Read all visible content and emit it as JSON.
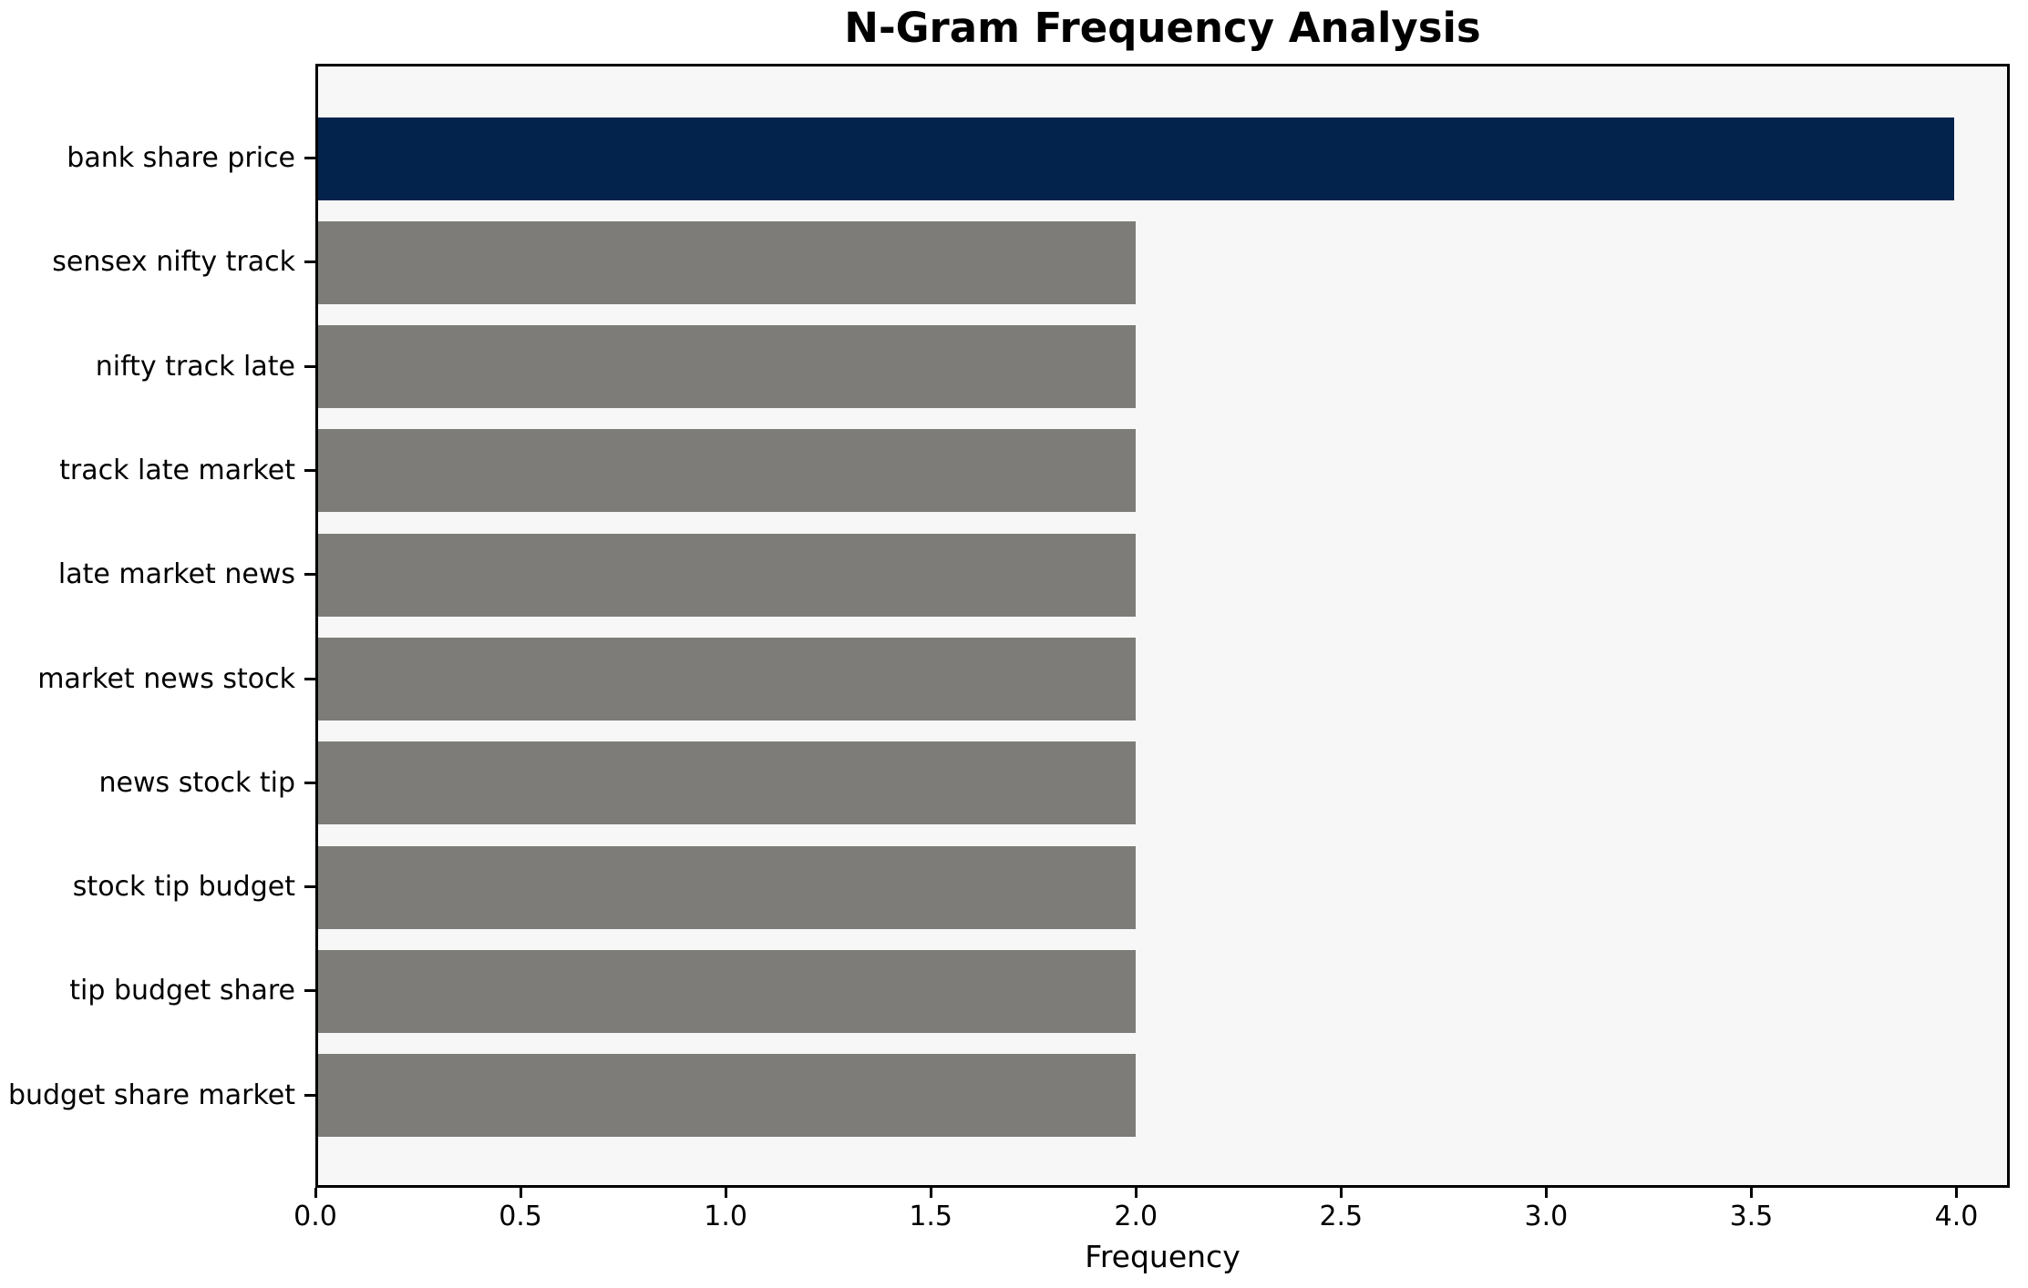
{
  "figure": {
    "background": "#ffffff",
    "plot_background": "#f7f7f7",
    "spine_color": "#000000",
    "text_color": "#000000"
  },
  "chart_data": {
    "type": "bar",
    "orientation": "horizontal",
    "title": "N-Gram Frequency Analysis",
    "xlabel": "Frequency",
    "ylabel": "",
    "categories": [
      "bank share price",
      "sensex nifty track",
      "nifty track late",
      "track late market",
      "late market news",
      "market news stock",
      "news stock tip",
      "stock tip budget",
      "tip budget share",
      "budget share market"
    ],
    "values": [
      4,
      2,
      2,
      2,
      2,
      2,
      2,
      2,
      2,
      2
    ],
    "bar_colors": [
      "#03234d",
      "#7d7c78",
      "#7d7c78",
      "#7d7c78",
      "#7d7c78",
      "#7d7c78",
      "#7d7c78",
      "#7d7c78",
      "#7d7c78",
      "#7d7c78"
    ],
    "highlight_color": "#03234d",
    "base_color": "#7d7c78",
    "xlim": [
      0,
      4.13
    ],
    "xticks": [
      0,
      0.5,
      1,
      1.5,
      2,
      2.5,
      3,
      3.5,
      4
    ],
    "xtick_labels": [
      "0.0",
      "0.5",
      "1.0",
      "1.5",
      "2.0",
      "2.5",
      "3.0",
      "3.5",
      "4.0"
    ],
    "grid": false,
    "legend": "none",
    "bar_height_fraction": 0.8
  }
}
